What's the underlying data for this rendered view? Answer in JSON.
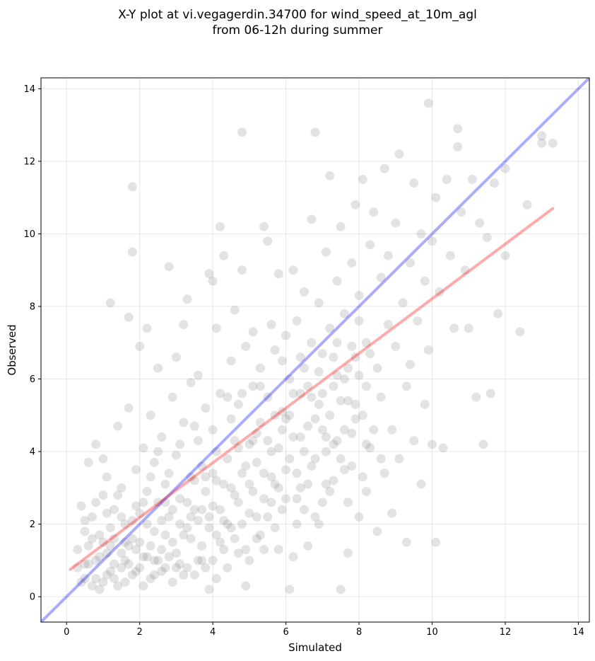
{
  "chart_data": {
    "type": "scatter",
    "title": "X-Y plot at vi.vegagerdin.34700 for wind_speed_at_10m_agl",
    "subtitle": "from 06-12h during summer",
    "xlabel": "Simulated",
    "ylabel": "Observed",
    "xlim": [
      -0.7,
      14.3
    ],
    "ylim": [
      -0.7,
      14.3
    ],
    "xticks": [
      0,
      2,
      4,
      6,
      8,
      10,
      12,
      14
    ],
    "yticks": [
      0,
      2,
      4,
      6,
      8,
      10,
      12,
      14
    ],
    "grid": true,
    "points_color": "#808080",
    "reference_lines": [
      {
        "kind": "one_to_one",
        "color": "#0000ff",
        "x": [
          -0.7,
          14.3
        ],
        "y": [
          -0.7,
          14.3
        ]
      },
      {
        "kind": "regression",
        "color": "#ff0000",
        "x": [
          0.1,
          13.3
        ],
        "y": [
          0.75,
          10.7
        ]
      }
    ],
    "points": [
      [
        0.3,
        1.3
      ],
      [
        0.4,
        2.5
      ],
      [
        0.5,
        0.5
      ],
      [
        0.5,
        1.8
      ],
      [
        0.6,
        3.7
      ],
      [
        0.7,
        2.2
      ],
      [
        0.8,
        1.0
      ],
      [
        0.8,
        4.2
      ],
      [
        0.9,
        0.2
      ],
      [
        1.0,
        2.8
      ],
      [
        1.0,
        1.5
      ],
      [
        1.1,
        0.6
      ],
      [
        1.1,
        3.3
      ],
      [
        1.2,
        1.9
      ],
      [
        1.2,
        8.1
      ],
      [
        1.3,
        0.9
      ],
      [
        1.3,
        2.4
      ],
      [
        1.4,
        4.7
      ],
      [
        1.5,
        1.2
      ],
      [
        1.5,
        3.0
      ],
      [
        1.6,
        0.4
      ],
      [
        1.6,
        2.0
      ],
      [
        1.7,
        5.2
      ],
      [
        1.7,
        7.7
      ],
      [
        1.8,
        11.3
      ],
      [
        1.8,
        9.5
      ],
      [
        1.8,
        1.6
      ],
      [
        1.9,
        3.5
      ],
      [
        1.9,
        0.7
      ],
      [
        2.0,
        2.3
      ],
      [
        2.0,
        6.9
      ],
      [
        2.1,
        1.1
      ],
      [
        2.1,
        4.1
      ],
      [
        2.2,
        7.4
      ],
      [
        2.2,
        2.9
      ],
      [
        2.3,
        0.5
      ],
      [
        2.3,
        5.0
      ],
      [
        2.4,
        1.8
      ],
      [
        2.4,
        3.7
      ],
      [
        2.5,
        2.6
      ],
      [
        2.5,
        6.3
      ],
      [
        2.6,
        1.3
      ],
      [
        2.6,
        4.4
      ],
      [
        2.7,
        0.8
      ],
      [
        2.7,
        3.1
      ],
      [
        2.8,
        9.1
      ],
      [
        2.8,
        2.2
      ],
      [
        2.9,
        5.5
      ],
      [
        2.9,
        1.5
      ],
      [
        3.0,
        3.9
      ],
      [
        3.0,
        6.6
      ],
      [
        3.1,
        2.7
      ],
      [
        3.1,
        0.9
      ],
      [
        3.2,
        4.8
      ],
      [
        3.2,
        7.5
      ],
      [
        3.3,
        1.9
      ],
      [
        3.3,
        8.2
      ],
      [
        3.4,
        3.3
      ],
      [
        3.4,
        5.9
      ],
      [
        3.5,
        2.4
      ],
      [
        3.5,
        0.6
      ],
      [
        3.6,
        4.3
      ],
      [
        3.6,
        6.1
      ],
      [
        3.7,
        1.4
      ],
      [
        3.7,
        3.6
      ],
      [
        3.8,
        5.2
      ],
      [
        3.8,
        2.9
      ],
      [
        3.9,
        0.2
      ],
      [
        3.9,
        8.9
      ],
      [
        4.0,
        2.5
      ],
      [
        4.0,
        4.6
      ],
      [
        4.0,
        8.7
      ],
      [
        4.1,
        1.7
      ],
      [
        4.1,
        3.2
      ],
      [
        4.1,
        7.4
      ],
      [
        4.2,
        10.2
      ],
      [
        4.2,
        5.6
      ],
      [
        4.3,
        2.1
      ],
      [
        4.3,
        9.4
      ],
      [
        4.4,
        3.8
      ],
      [
        4.4,
        0.8
      ],
      [
        4.5,
        6.5
      ],
      [
        4.5,
        4.9
      ],
      [
        4.6,
        2.8
      ],
      [
        4.6,
        7.9
      ],
      [
        4.7,
        1.2
      ],
      [
        4.7,
        5.3
      ],
      [
        4.8,
        12.8
      ],
      [
        4.8,
        3.4
      ],
      [
        4.8,
        9.0
      ],
      [
        4.9,
        6.9
      ],
      [
        4.9,
        0.3
      ],
      [
        5.0,
        4.2
      ],
      [
        5.0,
        2.3
      ],
      [
        5.1,
        7.3
      ],
      [
        5.1,
        5.8
      ],
      [
        5.2,
        1.6
      ],
      [
        5.2,
        3.7
      ],
      [
        5.3,
        6.3
      ],
      [
        5.3,
        4.8
      ],
      [
        5.4,
        10.2
      ],
      [
        5.4,
        2.7
      ],
      [
        5.5,
        9.8
      ],
      [
        5.5,
        5.5
      ],
      [
        5.6,
        3.3
      ],
      [
        5.6,
        7.5
      ],
      [
        5.7,
        1.9
      ],
      [
        5.7,
        6.8
      ],
      [
        5.8,
        4.1
      ],
      [
        5.8,
        8.9
      ],
      [
        5.9,
        2.4
      ],
      [
        5.9,
        5.1
      ],
      [
        6.0,
        7.2
      ],
      [
        6.0,
        3.5
      ],
      [
        6.1,
        0.2
      ],
      [
        6.1,
        6.0
      ],
      [
        6.2,
        9.0
      ],
      [
        6.2,
        4.4
      ],
      [
        6.3,
        2.0
      ],
      [
        6.3,
        7.6
      ],
      [
        6.4,
        5.6
      ],
      [
        6.4,
        3.0
      ],
      [
        6.5,
        8.4
      ],
      [
        6.5,
        6.3
      ],
      [
        6.6,
        1.4
      ],
      [
        6.6,
        4.7
      ],
      [
        6.7,
        10.4
      ],
      [
        6.7,
        7.0
      ],
      [
        6.8,
        3.8
      ],
      [
        6.8,
        12.8
      ],
      [
        6.9,
        5.3
      ],
      [
        6.9,
        8.1
      ],
      [
        7.0,
        2.6
      ],
      [
        7.0,
        6.7
      ],
      [
        7.1,
        9.5
      ],
      [
        7.1,
        4.0
      ],
      [
        7.2,
        11.6
      ],
      [
        7.2,
        7.4
      ],
      [
        7.3,
        5.8
      ],
      [
        7.3,
        3.2
      ],
      [
        7.4,
        8.7
      ],
      [
        7.4,
        6.1
      ],
      [
        7.5,
        0.2
      ],
      [
        7.5,
        10.2
      ],
      [
        7.6,
        4.6
      ],
      [
        7.6,
        7.8
      ],
      [
        7.7,
        1.2
      ],
      [
        7.7,
        5.4
      ],
      [
        7.8,
        9.2
      ],
      [
        7.8,
        3.6
      ],
      [
        7.9,
        10.8
      ],
      [
        7.9,
        6.6
      ],
      [
        8.0,
        2.2
      ],
      [
        8.0,
        8.3
      ],
      [
        8.1,
        5.0
      ],
      [
        8.1,
        11.5
      ],
      [
        8.2,
        7.0
      ],
      [
        8.2,
        2.9
      ],
      [
        8.3,
        9.7
      ],
      [
        8.3,
        4.1
      ],
      [
        8.4,
        10.6
      ],
      [
        8.5,
        6.3
      ],
      [
        8.5,
        1.8
      ],
      [
        8.6,
        8.8
      ],
      [
        8.6,
        5.5
      ],
      [
        8.7,
        11.8
      ],
      [
        8.7,
        3.4
      ],
      [
        8.8,
        7.5
      ],
      [
        8.8,
        9.4
      ],
      [
        8.9,
        4.6
      ],
      [
        8.9,
        2.3
      ],
      [
        9.0,
        10.3
      ],
      [
        9.0,
        6.9
      ],
      [
        9.1,
        12.2
      ],
      [
        9.1,
        3.8
      ],
      [
        9.2,
        8.1
      ],
      [
        9.3,
        5.8
      ],
      [
        9.3,
        1.5
      ],
      [
        9.4,
        9.2
      ],
      [
        9.4,
        6.4
      ],
      [
        9.5,
        11.4
      ],
      [
        9.5,
        4.3
      ],
      [
        9.6,
        7.6
      ],
      [
        9.7,
        3.1
      ],
      [
        9.7,
        10.0
      ],
      [
        9.8,
        8.7
      ],
      [
        9.8,
        5.3
      ],
      [
        9.9,
        13.6
      ],
      [
        9.9,
        6.8
      ],
      [
        10.0,
        9.8
      ],
      [
        10.0,
        4.2
      ],
      [
        10.1,
        1.5
      ],
      [
        10.1,
        11.0
      ],
      [
        10.2,
        8.4
      ],
      [
        10.3,
        4.1
      ],
      [
        10.4,
        11.5
      ],
      [
        10.5,
        9.4
      ],
      [
        10.6,
        7.4
      ],
      [
        10.7,
        12.9
      ],
      [
        10.7,
        12.4
      ],
      [
        10.8,
        10.6
      ],
      [
        10.9,
        9.0
      ],
      [
        11.0,
        7.4
      ],
      [
        11.1,
        11.5
      ],
      [
        11.2,
        5.5
      ],
      [
        11.3,
        10.3
      ],
      [
        11.4,
        4.2
      ],
      [
        11.5,
        9.9
      ],
      [
        11.6,
        5.6
      ],
      [
        11.7,
        11.4
      ],
      [
        11.8,
        7.8
      ],
      [
        12.0,
        9.4
      ],
      [
        12.0,
        11.8
      ],
      [
        12.4,
        7.3
      ],
      [
        12.6,
        10.8
      ],
      [
        13.0,
        12.7
      ],
      [
        13.0,
        12.5
      ],
      [
        13.3,
        12.5
      ],
      [
        0.5,
        0.9
      ],
      [
        0.6,
        1.4
      ],
      [
        0.7,
        0.3
      ],
      [
        0.8,
        2.6
      ],
      [
        0.9,
        1.7
      ],
      [
        1.0,
        0.4
      ],
      [
        1.1,
        1.2
      ],
      [
        1.2,
        0.7
      ],
      [
        1.3,
        1.6
      ],
      [
        1.4,
        0.3
      ],
      [
        1.5,
        2.2
      ],
      [
        1.6,
        1.0
      ],
      [
        1.7,
        1.4
      ],
      [
        1.8,
        0.6
      ],
      [
        1.9,
        2.5
      ],
      [
        2.0,
        1.5
      ],
      [
        2.1,
        0.3
      ],
      [
        2.2,
        2.0
      ],
      [
        2.3,
        1.4
      ],
      [
        2.4,
        0.6
      ],
      [
        2.5,
        1.0
      ],
      [
        2.6,
        2.1
      ],
      [
        2.7,
        1.7
      ],
      [
        2.8,
        3.4
      ],
      [
        2.9,
        0.4
      ],
      [
        3.0,
        1.2
      ],
      [
        3.1,
        2.0
      ],
      [
        3.2,
        0.6
      ],
      [
        3.3,
        2.6
      ],
      [
        3.4,
        1.6
      ],
      [
        3.5,
        3.2
      ],
      [
        3.6,
        1.0
      ],
      [
        3.7,
        2.4
      ],
      [
        3.8,
        0.8
      ],
      [
        3.9,
        1.9
      ],
      [
        4.0,
        3.4
      ],
      [
        4.1,
        0.5
      ],
      [
        4.2,
        2.4
      ],
      [
        4.3,
        1.3
      ],
      [
        4.4,
        2.0
      ],
      [
        4.5,
        3.0
      ],
      [
        4.6,
        1.6
      ],
      [
        4.7,
        4.1
      ],
      [
        4.8,
        2.0
      ],
      [
        4.9,
        3.6
      ],
      [
        5.0,
        1.0
      ],
      [
        5.1,
        2.9
      ],
      [
        5.2,
        4.5
      ],
      [
        5.3,
        1.7
      ],
      [
        5.4,
        3.4
      ],
      [
        5.5,
        2.2
      ],
      [
        5.6,
        4.0
      ],
      [
        5.7,
        3.1
      ],
      [
        5.8,
        1.3
      ],
      [
        5.9,
        4.6
      ],
      [
        6.0,
        2.7
      ],
      [
        6.1,
        5.0
      ],
      [
        6.2,
        1.1
      ],
      [
        6.3,
        3.4
      ],
      [
        6.4,
        4.4
      ],
      [
        6.5,
        2.4
      ],
      [
        6.6,
        5.8
      ],
      [
        6.7,
        3.6
      ],
      [
        6.8,
        4.9
      ],
      [
        6.9,
        2.0
      ],
      [
        7.0,
        5.6
      ],
      [
        7.1,
        4.4
      ],
      [
        7.2,
        2.9
      ],
      [
        7.3,
        6.6
      ],
      [
        7.4,
        4.3
      ],
      [
        7.5,
        5.4
      ],
      [
        7.6,
        3.5
      ],
      [
        7.7,
        6.3
      ],
      [
        7.8,
        4.5
      ],
      [
        7.9,
        5.3
      ],
      [
        8.0,
        6.1
      ],
      [
        8.1,
        3.3
      ],
      [
        8.2,
        5.8
      ],
      [
        8.4,
        4.6
      ],
      [
        8.6,
        3.8
      ],
      [
        0.3,
        0.8
      ],
      [
        0.4,
        0.4
      ],
      [
        0.5,
        2.1
      ],
      [
        0.6,
        0.9
      ],
      [
        0.7,
        1.6
      ],
      [
        0.8,
        0.5
      ],
      [
        0.9,
        1.1
      ],
      [
        1.0,
        3.8
      ],
      [
        1.1,
        2.3
      ],
      [
        1.2,
        1.4
      ],
      [
        1.3,
        0.5
      ],
      [
        1.4,
        2.8
      ],
      [
        1.5,
        0.8
      ],
      [
        1.6,
        1.5
      ],
      [
        1.7,
        0.9
      ],
      [
        1.8,
        2.1
      ],
      [
        1.9,
        1.3
      ],
      [
        2.0,
        0.8
      ],
      [
        2.1,
        2.6
      ],
      [
        2.2,
        1.1
      ],
      [
        2.3,
        3.3
      ],
      [
        2.4,
        1.0
      ],
      [
        2.5,
        4.0
      ],
      [
        2.6,
        0.7
      ],
      [
        2.7,
        2.6
      ],
      [
        2.8,
        1.1
      ],
      [
        2.9,
        2.4
      ],
      [
        3.0,
        0.8
      ],
      [
        3.1,
        4.2
      ],
      [
        3.2,
        1.7
      ],
      [
        3.3,
        0.8
      ],
      [
        3.4,
        2.2
      ],
      [
        3.5,
        4.7
      ],
      [
        3.6,
        2.1
      ],
      [
        3.7,
        1.0
      ],
      [
        3.8,
        3.3
      ],
      [
        3.9,
        2.2
      ],
      [
        4.0,
        1.0
      ],
      [
        4.1,
        4.0
      ],
      [
        4.2,
        1.5
      ],
      [
        4.3,
        3.1
      ],
      [
        4.4,
        5.5
      ],
      [
        4.5,
        1.9
      ],
      [
        4.6,
        4.3
      ],
      [
        4.7,
        2.6
      ],
      [
        4.8,
        5.6
      ],
      [
        4.9,
        1.3
      ],
      [
        5.0,
        3.1
      ],
      [
        5.1,
        4.3
      ],
      [
        5.2,
        2.2
      ],
      [
        5.3,
        5.8
      ],
      [
        5.4,
        1.3
      ],
      [
        5.5,
        4.3
      ],
      [
        5.6,
        2.6
      ],
      [
        5.7,
        5.0
      ],
      [
        5.8,
        3.0
      ],
      [
        5.9,
        6.5
      ],
      [
        6.0,
        4.9
      ],
      [
        6.1,
        3.8
      ],
      [
        6.2,
        5.6
      ],
      [
        6.3,
        2.7
      ],
      [
        6.4,
        6.6
      ],
      [
        6.5,
        4.0
      ],
      [
        6.6,
        3.1
      ],
      [
        6.7,
        5.5
      ],
      [
        6.8,
        2.2
      ],
      [
        6.9,
        6.2
      ],
      [
        7.0,
        4.6
      ],
      [
        7.1,
        3.1
      ],
      [
        7.2,
        5.0
      ],
      [
        7.3,
        4.2
      ],
      [
        7.4,
        7.0
      ],
      [
        7.5,
        3.8
      ],
      [
        7.6,
        6.0
      ],
      [
        7.7,
        2.6
      ],
      [
        7.8,
        6.9
      ],
      [
        7.9,
        4.9
      ],
      [
        8.0,
        7.6
      ],
      [
        8.2,
        4.2
      ],
      [
        8.3,
        6.7
      ]
    ]
  }
}
